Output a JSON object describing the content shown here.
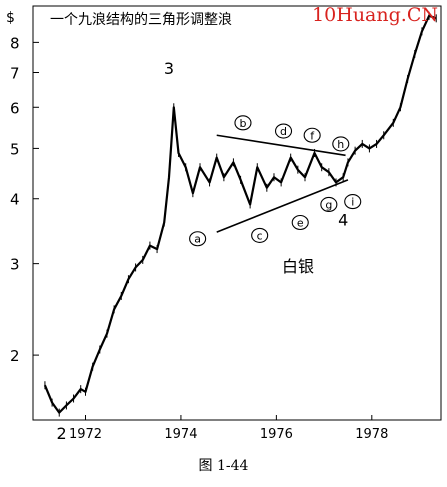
{
  "chart_data": {
    "type": "line",
    "title": "一个九浪结构的三角形调整浪",
    "series_label": "白银",
    "y_axis_unit_label": "$",
    "y_scale": "log",
    "ylim": [
      1.5,
      9.4
    ],
    "xlim": [
      1970.9,
      1979.45
    ],
    "yticks": [
      2,
      3,
      4,
      5,
      6,
      7,
      8
    ],
    "ytick_labels": [
      "2",
      "3",
      "4",
      "5",
      "6",
      "7",
      "8"
    ],
    "xticks": [
      1972,
      1974,
      1976,
      1978
    ],
    "xtick_labels": [
      "1972",
      "1974",
      "1976",
      "1978"
    ],
    "grid": false,
    "series": [
      {
        "x": [
          1971.15,
          1971.3,
          1971.45,
          1971.6,
          1971.75,
          1971.9,
          1972.0,
          1972.15,
          1972.3,
          1972.45,
          1972.6,
          1972.75,
          1972.9,
          1973.05,
          1973.2,
          1973.35,
          1973.5,
          1973.65,
          1973.75,
          1973.85,
          1973.95,
          1974.1,
          1974.25,
          1974.4,
          1974.6,
          1974.75,
          1974.9,
          1975.1,
          1975.25,
          1975.45,
          1975.6,
          1975.8,
          1975.95,
          1976.1,
          1976.3,
          1976.45,
          1976.6,
          1976.8,
          1976.95,
          1977.1,
          1977.25,
          1977.4,
          1977.5,
          1977.65,
          1977.8,
          1977.95,
          1978.1,
          1978.25,
          1978.45,
          1978.6,
          1978.75,
          1978.9,
          1979.05,
          1979.2,
          1979.35
        ],
        "values": [
          1.75,
          1.62,
          1.55,
          1.6,
          1.65,
          1.72,
          1.7,
          1.9,
          2.05,
          2.2,
          2.45,
          2.6,
          2.8,
          2.95,
          3.05,
          3.25,
          3.2,
          3.6,
          4.4,
          6.0,
          4.9,
          4.6,
          4.1,
          4.6,
          4.3,
          4.8,
          4.4,
          4.7,
          4.35,
          3.9,
          4.6,
          4.2,
          4.4,
          4.3,
          4.8,
          4.55,
          4.4,
          4.9,
          4.6,
          4.5,
          4.3,
          4.4,
          4.7,
          4.95,
          5.1,
          5.0,
          5.1,
          5.3,
          5.6,
          6.0,
          6.8,
          7.6,
          8.4,
          9.0,
          8.9
        ]
      }
    ],
    "trendlines": [
      {
        "from": [
          1974.75,
          5.3
        ],
        "to": [
          1977.45,
          4.85
        ]
      },
      {
        "from": [
          1974.75,
          3.45
        ],
        "to": [
          1977.5,
          4.35
        ]
      }
    ],
    "wave_labels": [
      {
        "text": "2",
        "x": 1971.5,
        "y": 1.38
      },
      {
        "text": "3",
        "x": 1973.75,
        "y": 6.95
      },
      {
        "text": "4",
        "x": 1977.4,
        "y": 3.55
      }
    ],
    "circled_labels": [
      {
        "text": "a",
        "x": 1974.35,
        "y": 3.35
      },
      {
        "text": "b",
        "x": 1975.3,
        "y": 5.6
      },
      {
        "text": "c",
        "x": 1975.65,
        "y": 3.4
      },
      {
        "text": "d",
        "x": 1976.15,
        "y": 5.4
      },
      {
        "text": "e",
        "x": 1976.5,
        "y": 3.6
      },
      {
        "text": "f",
        "x": 1976.75,
        "y": 5.3
      },
      {
        "text": "g",
        "x": 1977.1,
        "y": 3.9
      },
      {
        "text": "h",
        "x": 1977.35,
        "y": 5.1
      },
      {
        "text": "i",
        "x": 1977.6,
        "y": 3.95
      }
    ]
  },
  "watermark": "10Huang.CN",
  "caption": "图 1-44",
  "colors": {
    "line": "#000000",
    "watermark": "#d8231f"
  }
}
